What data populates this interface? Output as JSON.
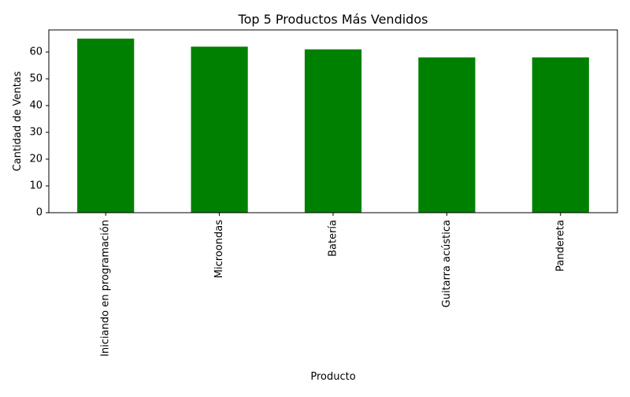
{
  "chart_data": {
    "type": "bar",
    "title": "Top 5 Productos Más Vendidos",
    "xlabel": "Producto",
    "ylabel": "Cantidad de Ventas",
    "categories": [
      "Iniciando en programación",
      "Microondas",
      "Batería",
      "Guitarra acústica",
      "Pandereta"
    ],
    "values": [
      65,
      62,
      61,
      58,
      58
    ],
    "ylim": [
      0,
      68.25
    ],
    "yticks": [
      0,
      10,
      20,
      30,
      40,
      50,
      60
    ],
    "bar_color": "#008000",
    "grid": false,
    "legend": "none"
  }
}
